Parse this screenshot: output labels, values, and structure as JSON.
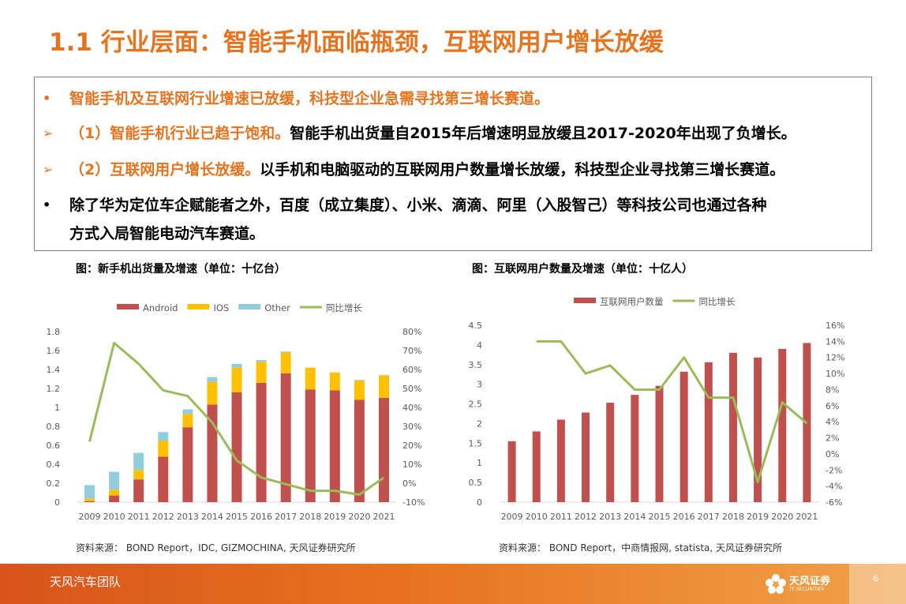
{
  "title": "1.1 行业层面：智能手机面临瓶颈，互联网用户增长放缓",
  "bullets": [
    {
      "marker": "•",
      "orange": "智能手机及互联网行业增速已放缓，科技型企业急需寻找第三增长赛道。",
      "black": ""
    },
    {
      "marker": "➢",
      "orange": "（1）智能手机行业已趋于饱和。",
      "black": "智能手机出货量自2015年后增速明显放缓且2017-2020年出现了负增长。"
    },
    {
      "marker": "➢",
      "orange": "（2）互联网用户增长放缓。",
      "black": "以手机和电脑驱动的互联网用户数量增长放缓，科技型企业寻找第三增长赛道。"
    },
    {
      "marker": "•",
      "orange": "",
      "black": "除了华为定位车企赋能者之外，百度（成立集度）、小米、滴滴、阿里（入股智己）等科技公司也通过各种"
    },
    {
      "marker": "",
      "orange": "",
      "black": "方式入局智能电动汽车赛道。"
    }
  ],
  "chart1_caption": "图：新手机出货量及增速（单位：十亿台）",
  "chart1_source": "资料来源： BOND Report，IDC, GIZMOCHINA, 天风证券研究所",
  "chart2_caption": "图：互联网用户数量及增速（单位：十亿人）",
  "chart2_source": "资料来源： BOND Report，中商情报网, statista, 天风证券研究所",
  "footer": {
    "team": "天风汽车团队",
    "logo_text": "天风证券",
    "logo_sub": "TF SECURITIES",
    "page": "6"
  },
  "colors": {
    "accent": "#e8731e",
    "android": "#c0504d",
    "ios": "#ffc000",
    "other": "#92cddc",
    "growth": "#9bbb59"
  },
  "chart_data": [
    {
      "type": "bar",
      "stacked": true,
      "categories": [
        "2009",
        "2010",
        "2011",
        "2012",
        "2013",
        "2014",
        "2015",
        "2016",
        "2017",
        "2018",
        "2019",
        "2020",
        "2021"
      ],
      "series": [
        {
          "name": "Android",
          "type": "bar",
          "axis": "left",
          "color": "#c0504d",
          "values": [
            0.01,
            0.07,
            0.24,
            0.48,
            0.79,
            1.03,
            1.16,
            1.26,
            1.36,
            1.19,
            1.18,
            1.08,
            1.1
          ]
        },
        {
          "name": "IOS",
          "type": "bar",
          "axis": "left",
          "color": "#ffc000",
          "values": [
            0.03,
            0.06,
            0.1,
            0.17,
            0.14,
            0.24,
            0.26,
            0.22,
            0.22,
            0.23,
            0.19,
            0.2,
            0.24
          ]
        },
        {
          "name": "Other",
          "type": "bar",
          "axis": "left",
          "color": "#92cddc",
          "values": [
            0.14,
            0.19,
            0.18,
            0.09,
            0.05,
            0.05,
            0.04,
            0.02,
            0.01,
            0.0,
            0.0,
            0.01,
            0.0
          ]
        },
        {
          "name": "同比增长",
          "type": "line",
          "axis": "right",
          "color": "#9bbb59",
          "values": [
            22,
            74,
            63,
            49,
            46,
            32,
            12,
            3,
            -0.5,
            -4,
            -4,
            -6,
            3
          ]
        }
      ],
      "yticks_left": [
        "0",
        "0.2",
        "0.4",
        "0.6",
        "0.8",
        "1",
        "1.2",
        "1.4",
        "1.6",
        "1.8"
      ],
      "ylim_left": [
        0,
        1.8
      ],
      "yticks_right": [
        "-10%",
        "0%",
        "10%",
        "20%",
        "30%",
        "40%",
        "50%",
        "60%",
        "70%",
        "80%"
      ],
      "ylim_right": [
        -10,
        80
      ],
      "legend": "top",
      "grid": false
    },
    {
      "type": "bar",
      "categories": [
        "2009",
        "2010",
        "2011",
        "2012",
        "2013",
        "2014",
        "2015",
        "2016",
        "2017",
        "2018",
        "2019",
        "2020",
        "2021"
      ],
      "series": [
        {
          "name": "互联网用户数量",
          "type": "bar",
          "axis": "left",
          "color": "#c0504d",
          "values": [
            1.55,
            1.8,
            2.1,
            2.28,
            2.53,
            2.73,
            2.96,
            3.32,
            3.56,
            3.8,
            3.68,
            3.9,
            4.05
          ]
        },
        {
          "name": "同比增长",
          "type": "line",
          "axis": "right",
          "color": "#9bbb59",
          "values": [
            null,
            14,
            14,
            10,
            11,
            8,
            8,
            12,
            7,
            7,
            -3.5,
            6.4,
            3.8
          ]
        }
      ],
      "yticks_left": [
        "0",
        "0.5",
        "1",
        "1.5",
        "2",
        "2.5",
        "3",
        "3.5",
        "4",
        "4.5"
      ],
      "ylim_left": [
        0,
        4.5
      ],
      "yticks_right": [
        "-6%",
        "-4%",
        "-2%",
        "0%",
        "2%",
        "4%",
        "6%",
        "8%",
        "10%",
        "12%",
        "14%",
        "16%"
      ],
      "ylim_right": [
        -6,
        16
      ],
      "legend": "top",
      "grid": false
    }
  ]
}
